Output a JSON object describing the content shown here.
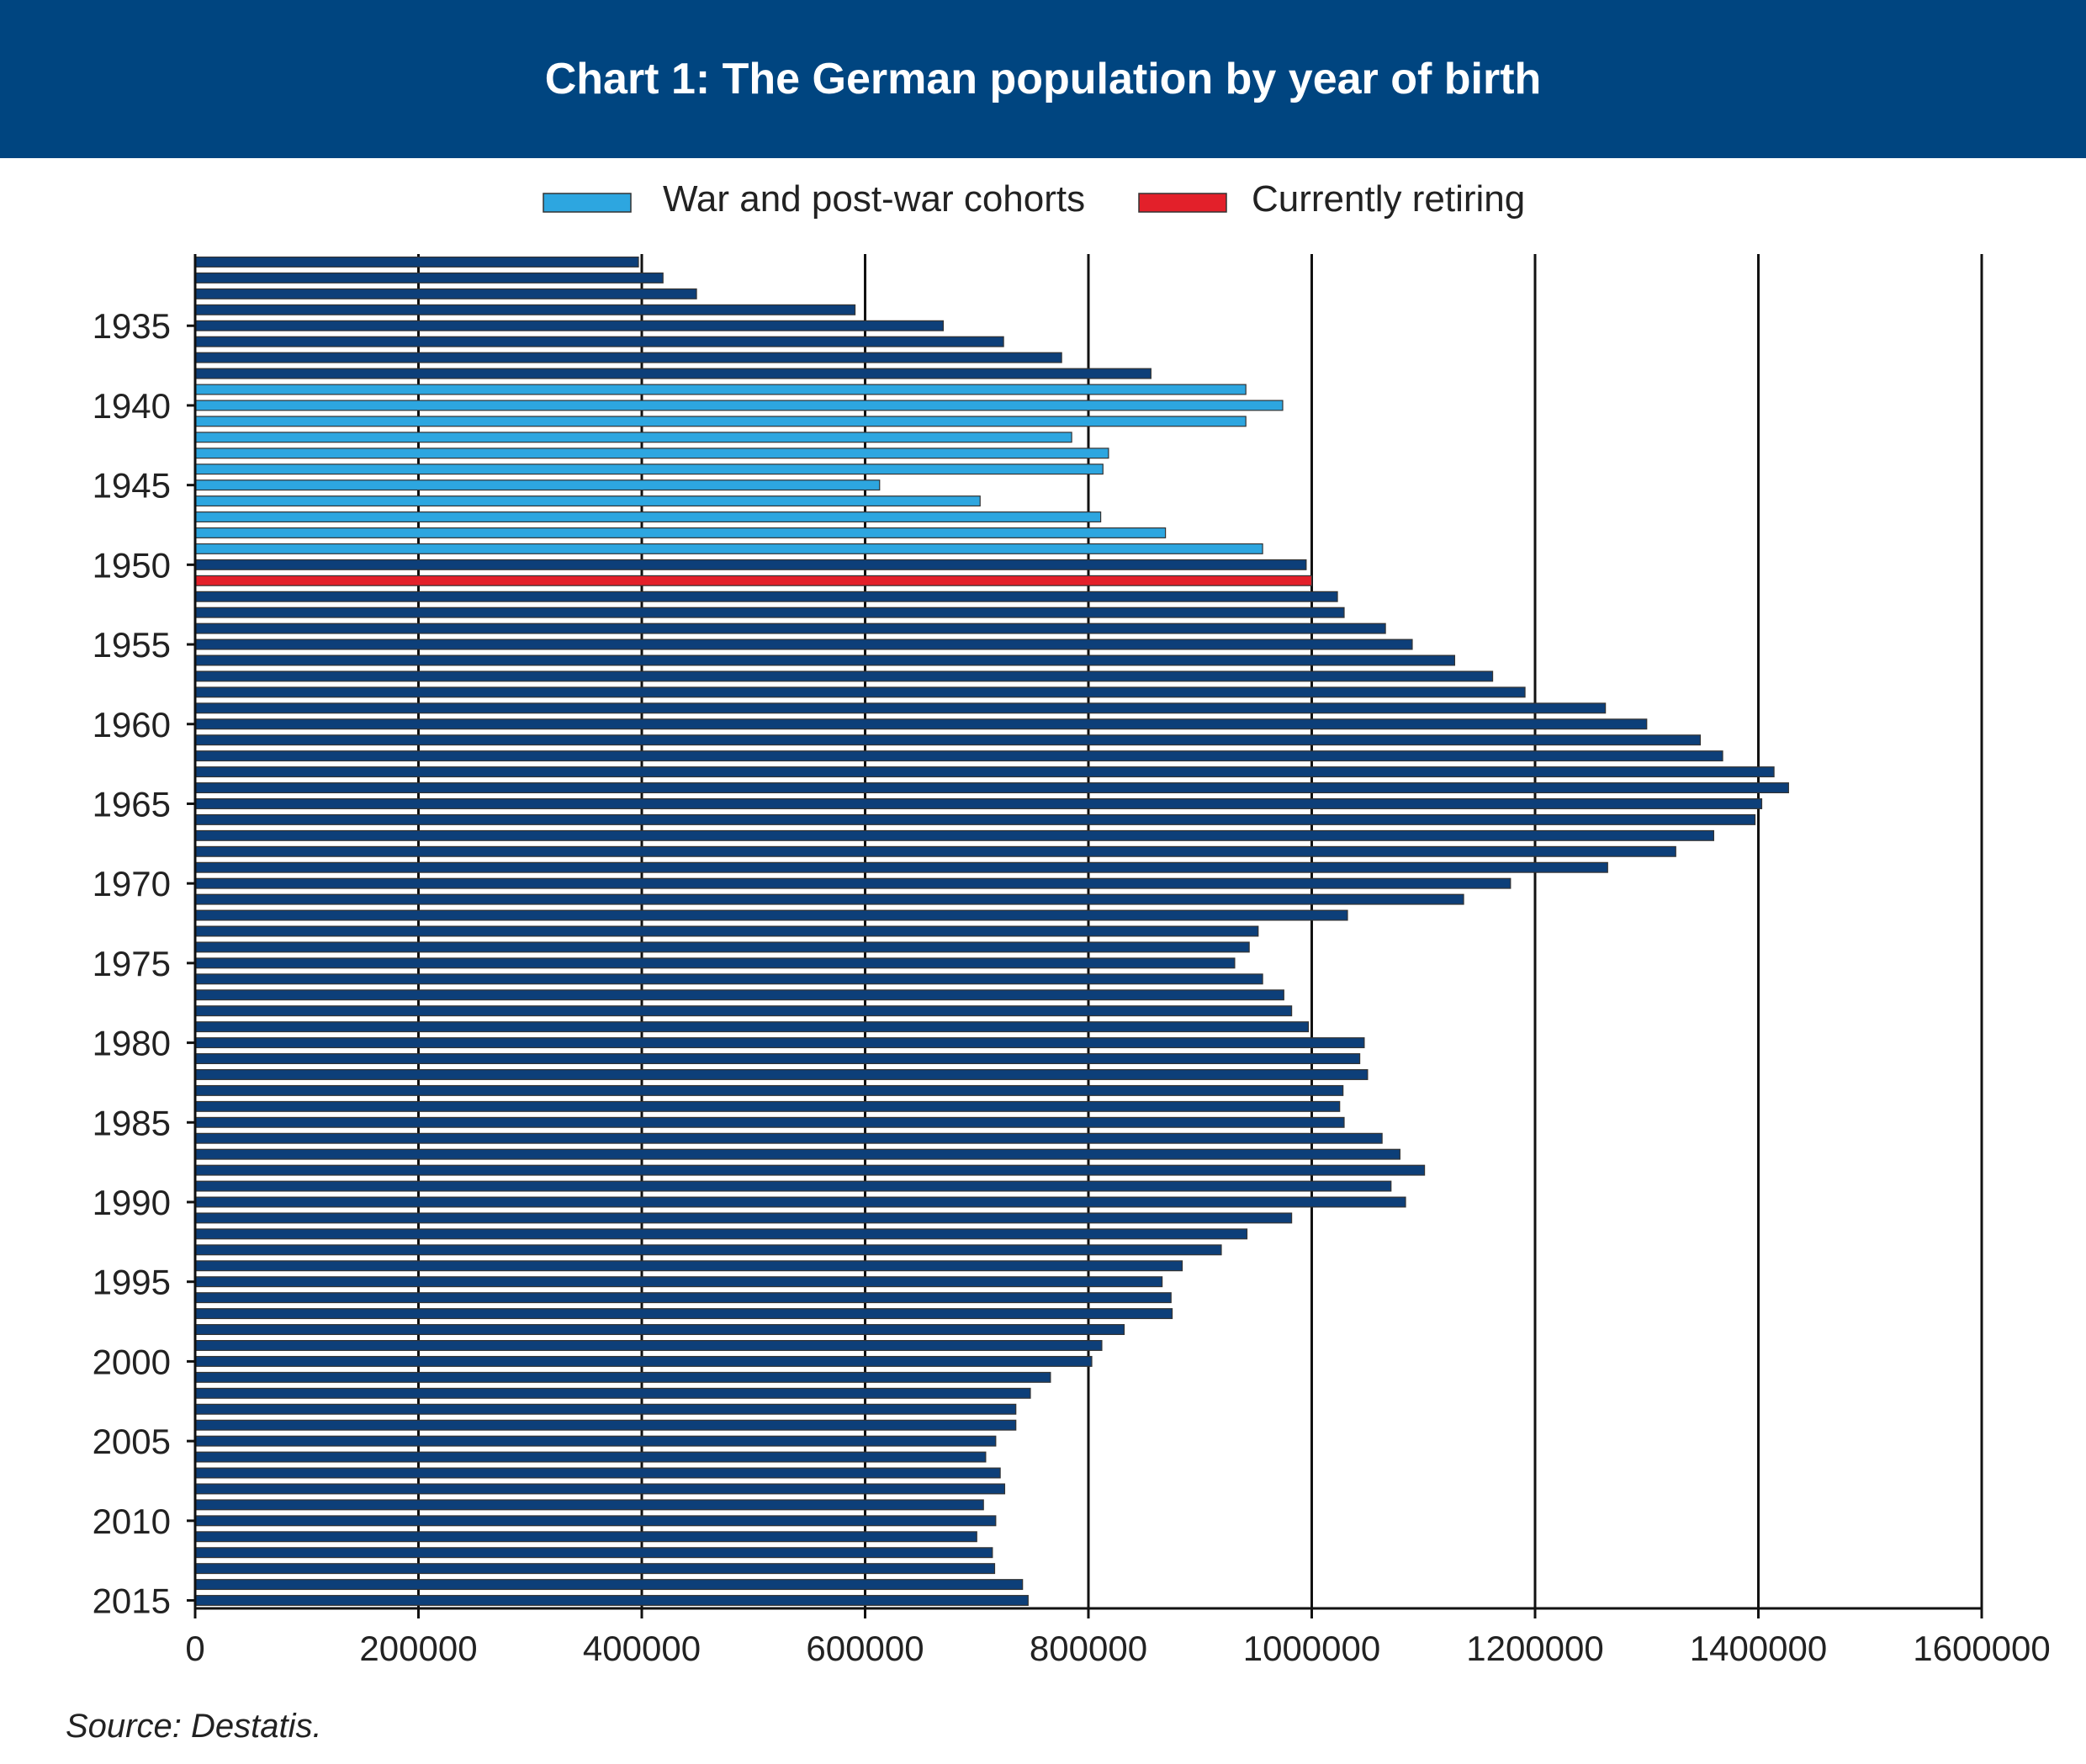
{
  "title": "Chart 1: The German population by year of birth",
  "source": "Source: Destatis.",
  "colors": {
    "header_bg": "#004580",
    "default_bar": "#0d3f79",
    "war_bar": "#2da6e0",
    "retiring_bar": "#e3202a",
    "bar_edge": "#333333"
  },
  "chart_data": {
    "type": "bar",
    "orientation": "horizontal",
    "title": "Chart 1: The German population by year of birth",
    "xlabel": "",
    "ylabel": "",
    "xlim": [
      0,
      1600000
    ],
    "x_ticks": [
      0,
      200000,
      400000,
      600000,
      800000,
      1000000,
      1200000,
      1400000,
      1600000
    ],
    "x_tick_labels": [
      "0",
      "200000",
      "400000",
      "600000",
      "800000",
      "1000000",
      "1200000",
      "1400000",
      "1600000"
    ],
    "y_tick_labels": [
      "1935",
      "1940",
      "1945",
      "1950",
      "1955",
      "1960",
      "1965",
      "1970",
      "1975",
      "1980",
      "1985",
      "1990",
      "1995",
      "2000",
      "2005",
      "2010",
      "2015"
    ],
    "grid": "vertical gridlines at every x tick",
    "legend": {
      "position": "top-center",
      "entries": [
        {
          "label": "War and post-war cohorts",
          "color": "#2da6e0"
        },
        {
          "label": "Currently retiring",
          "color": "#e3202a"
        }
      ]
    },
    "war_cohort_years": [
      1939,
      1949
    ],
    "retiring_years": [
      1951
    ],
    "categories": [
      1931,
      1932,
      1933,
      1934,
      1935,
      1936,
      1937,
      1938,
      1939,
      1940,
      1941,
      1942,
      1943,
      1944,
      1945,
      1946,
      1947,
      1948,
      1949,
      1950,
      1951,
      1952,
      1953,
      1954,
      1955,
      1956,
      1957,
      1958,
      1959,
      1960,
      1961,
      1962,
      1963,
      1964,
      1965,
      1966,
      1967,
      1968,
      1969,
      1970,
      1971,
      1972,
      1973,
      1974,
      1975,
      1976,
      1977,
      1978,
      1979,
      1980,
      1981,
      1982,
      1983,
      1984,
      1985,
      1986,
      1987,
      1988,
      1989,
      1990,
      1991,
      1992,
      1993,
      1994,
      1995,
      1996,
      1997,
      1998,
      1999,
      2000,
      2001,
      2002,
      2003,
      2004,
      2005,
      2006,
      2007,
      2008,
      2009,
      2010,
      2011,
      2012,
      2013,
      2014,
      2015
    ],
    "values": [
      397000,
      419000,
      449000,
      591000,
      670000,
      724000,
      776000,
      856000,
      941000,
      974000,
      941000,
      785000,
      818000,
      813000,
      613000,
      703000,
      811000,
      869000,
      956000,
      995000,
      1000000,
      1023000,
      1029000,
      1066000,
      1090000,
      1128000,
      1162000,
      1191000,
      1263000,
      1300000,
      1348000,
      1368000,
      1414000,
      1427000,
      1403000,
      1397000,
      1360000,
      1326000,
      1265000,
      1178000,
      1136000,
      1032000,
      952000,
      944000,
      931000,
      956000,
      975000,
      982000,
      997000,
      1047000,
      1043000,
      1050000,
      1028000,
      1025000,
      1029000,
      1063000,
      1079000,
      1101000,
      1071000,
      1084000,
      982000,
      942000,
      919000,
      884000,
      866000,
      874000,
      875000,
      832000,
      812000,
      803000,
      766000,
      748000,
      735000,
      735000,
      717000,
      708000,
      721000,
      725000,
      706000,
      717000,
      700000,
      714000,
      716000,
      741000,
      746000
    ]
  }
}
